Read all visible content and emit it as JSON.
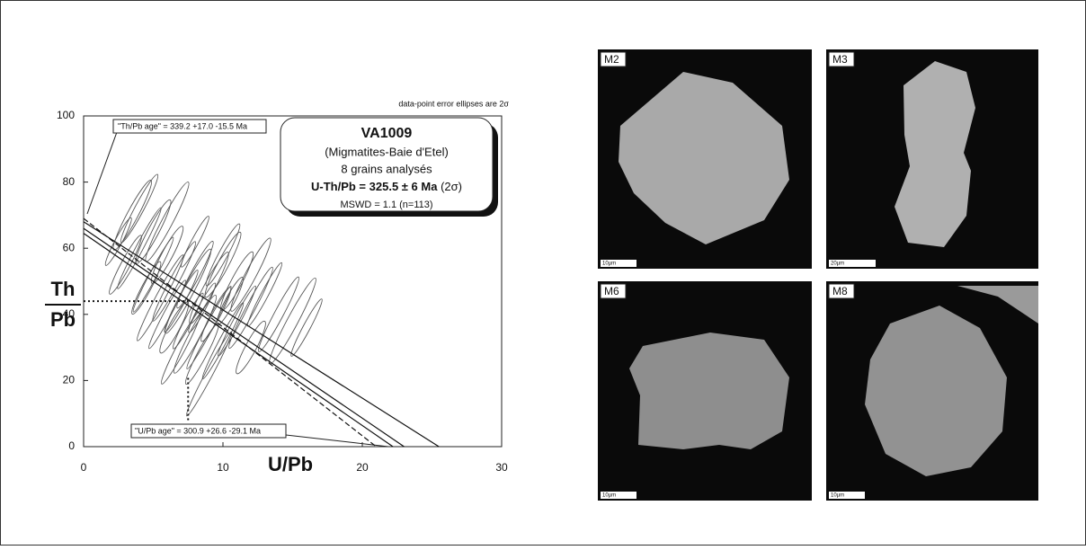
{
  "chart_data": {
    "type": "scatter",
    "note": "data-point error ellipses are 2σ",
    "box": {
      "title": "VA1009",
      "subtitle": "(Migmatites-Baie d'Etel)",
      "grains": "8 grains analysés",
      "age": "U-Th/Pb = 325.5 ± 6 Ma",
      "age_sigma": "(2σ)",
      "mswd": "MSWD = 1.1 (n=113)"
    },
    "th_pb_age": "\"Th/Pb age\" =  339.2 +17.0 -15.5 Ma",
    "u_pb_age": "\"U/Pb age\" = 300.9 +26.6 -29.1 Ma",
    "x_label": "U/Pb",
    "y_label_top": "Th",
    "y_label_bottom": "Pb",
    "xlim": [
      0,
      30
    ],
    "ylim": [
      0,
      100
    ],
    "xticks": [
      0,
      10,
      20,
      30
    ],
    "yticks": [
      0,
      20,
      40,
      60,
      80,
      100
    ],
    "x": [
      2.5,
      3,
      3.5,
      4,
      4.5,
      5,
      5,
      5.5,
      6,
      6,
      6.5,
      6.5,
      7,
      7,
      7.5,
      7.5,
      8,
      8,
      8.5,
      8.5,
      9,
      9,
      9.5,
      10,
      10,
      10.5,
      11,
      11,
      12,
      12,
      13,
      14,
      15,
      16,
      4,
      6,
      8,
      10,
      12,
      9
    ],
    "y": [
      62,
      55,
      70,
      60,
      48,
      65,
      52,
      45,
      58,
      40,
      50,
      36,
      44,
      30,
      47,
      38,
      52,
      34,
      42,
      28,
      48,
      36,
      40,
      55,
      32,
      44,
      50,
      38,
      42,
      30,
      46,
      40,
      38,
      36,
      72,
      68,
      62,
      58,
      52,
      22
    ],
    "color": "#555555",
    "lines": [
      {
        "style": "dashed",
        "x": [
          0,
          21
        ],
        "y": [
          69,
          0
        ]
      },
      {
        "style": "solid",
        "x": [
          0,
          25.5
        ],
        "y": [
          68,
          0
        ]
      },
      {
        "style": "solid",
        "x": [
          0,
          23
        ],
        "y": [
          66,
          0
        ]
      },
      {
        "style": "solid",
        "x": [
          0,
          22.2
        ],
        "y": [
          64.5,
          0
        ]
      },
      {
        "style": "dotted",
        "x": [
          0,
          7.5
        ],
        "y": [
          44,
          44
        ]
      },
      {
        "style": "dotted",
        "x": [
          7.5,
          7.5
        ],
        "y": [
          8,
          21
        ]
      }
    ]
  },
  "panels": [
    {
      "label": "M2",
      "scale": "10µm"
    },
    {
      "label": "M3",
      "scale": "20µm"
    },
    {
      "label": "M6",
      "scale": "10µm"
    },
    {
      "label": "M8",
      "scale": "10µm"
    }
  ]
}
